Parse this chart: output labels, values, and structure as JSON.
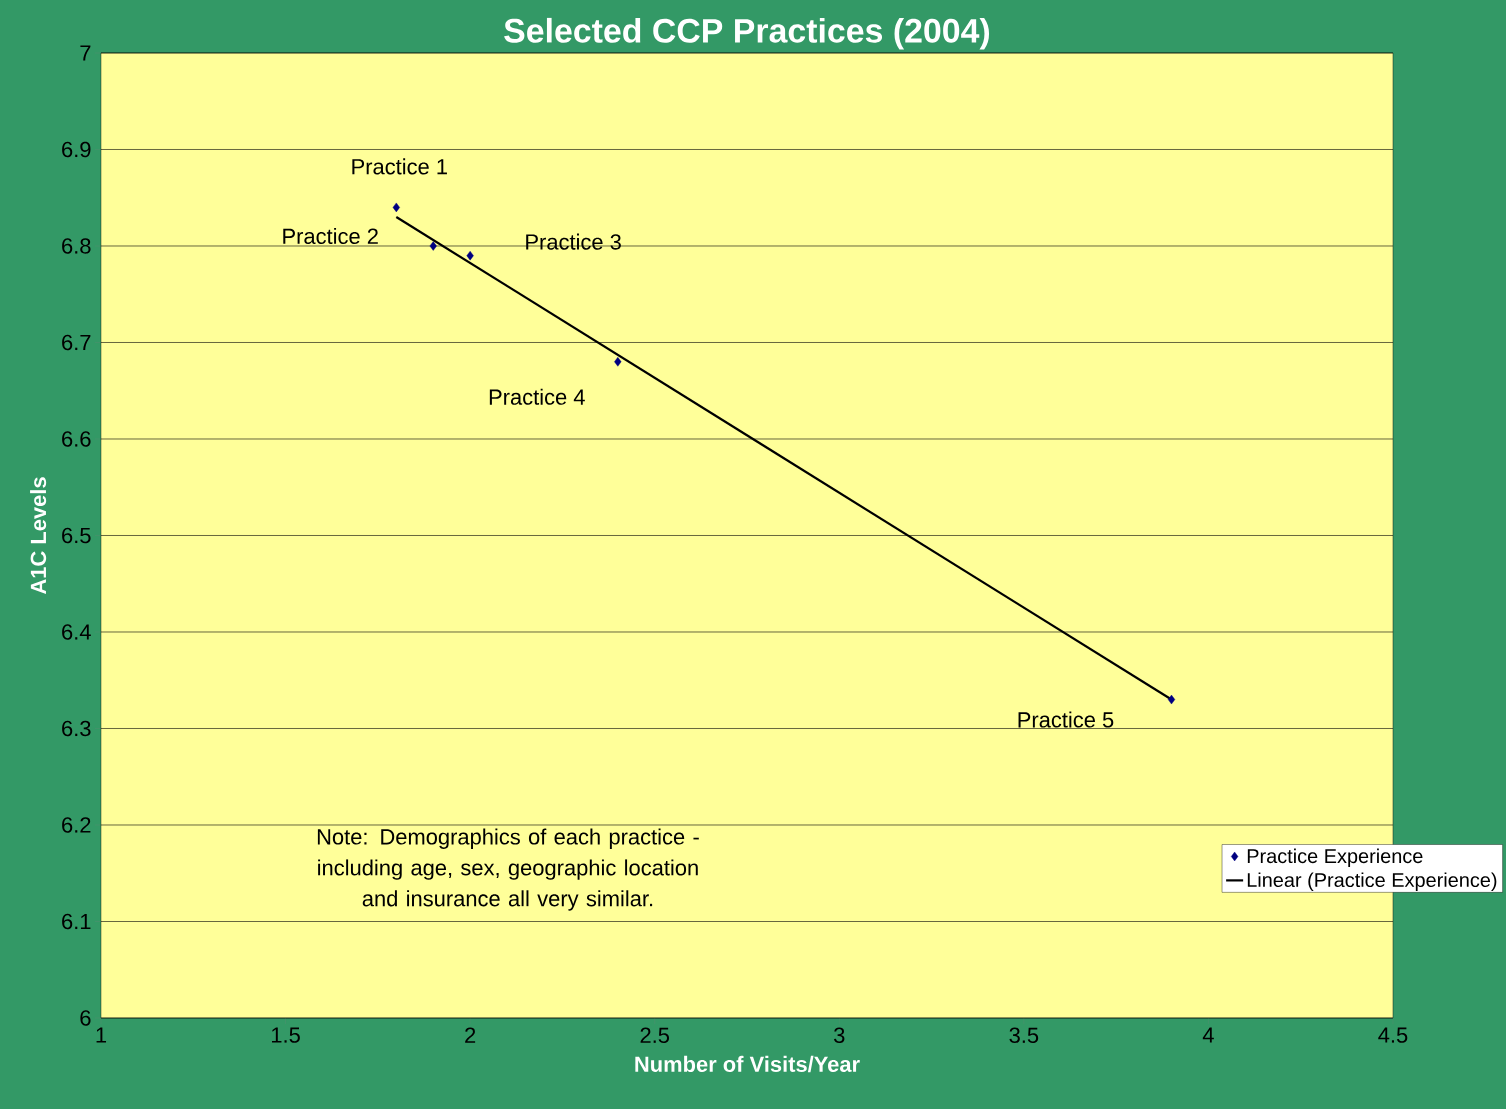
{
  "chart_data": {
    "type": "scatter",
    "title": "Selected CCP Practices (2004)",
    "xlabel": "Number of Visits/Year",
    "ylabel": "A1C Levels",
    "series": [
      {
        "name": "Practice Experience",
        "color": "#000080",
        "marker": "diamond",
        "x": [
          1.8,
          1.9,
          2.0,
          2.4,
          3.9
        ],
        "values": [
          6.84,
          6.8,
          6.79,
          6.68,
          6.33
        ]
      },
      {
        "name": "Linear (Practice Experience)",
        "type": "line",
        "color": "#000000",
        "line_style": "solid",
        "x": [
          1.8,
          3.9
        ],
        "values": [
          6.83,
          6.33
        ]
      }
    ],
    "annotations": [
      {
        "text": "Practice 1",
        "x": 1.8,
        "y": 6.84
      },
      {
        "text": "Practice 2",
        "x": 1.9,
        "y": 6.8
      },
      {
        "text": "Practice 3",
        "x": 2.0,
        "y": 6.79
      },
      {
        "text": "Practice 4",
        "x": 2.4,
        "y": 6.68
      },
      {
        "text": "Practice 5",
        "x": 3.9,
        "y": 6.33
      },
      "Note: Demographics of each practice - including age, sex, geographic location\nand insurance all very similar."
    ],
    "xlim": [
      1,
      4.5
    ],
    "ylim": [
      6,
      7
    ],
    "xticks": [
      1,
      1.5,
      2,
      2.5,
      3,
      3.5,
      4,
      4.5
    ],
    "yticks": [
      6,
      6.1,
      6.2,
      6.3,
      6.4,
      6.5,
      6.6,
      6.7,
      6.8,
      6.9,
      7
    ],
    "grid": "y",
    "legend": "bottom right"
  }
}
